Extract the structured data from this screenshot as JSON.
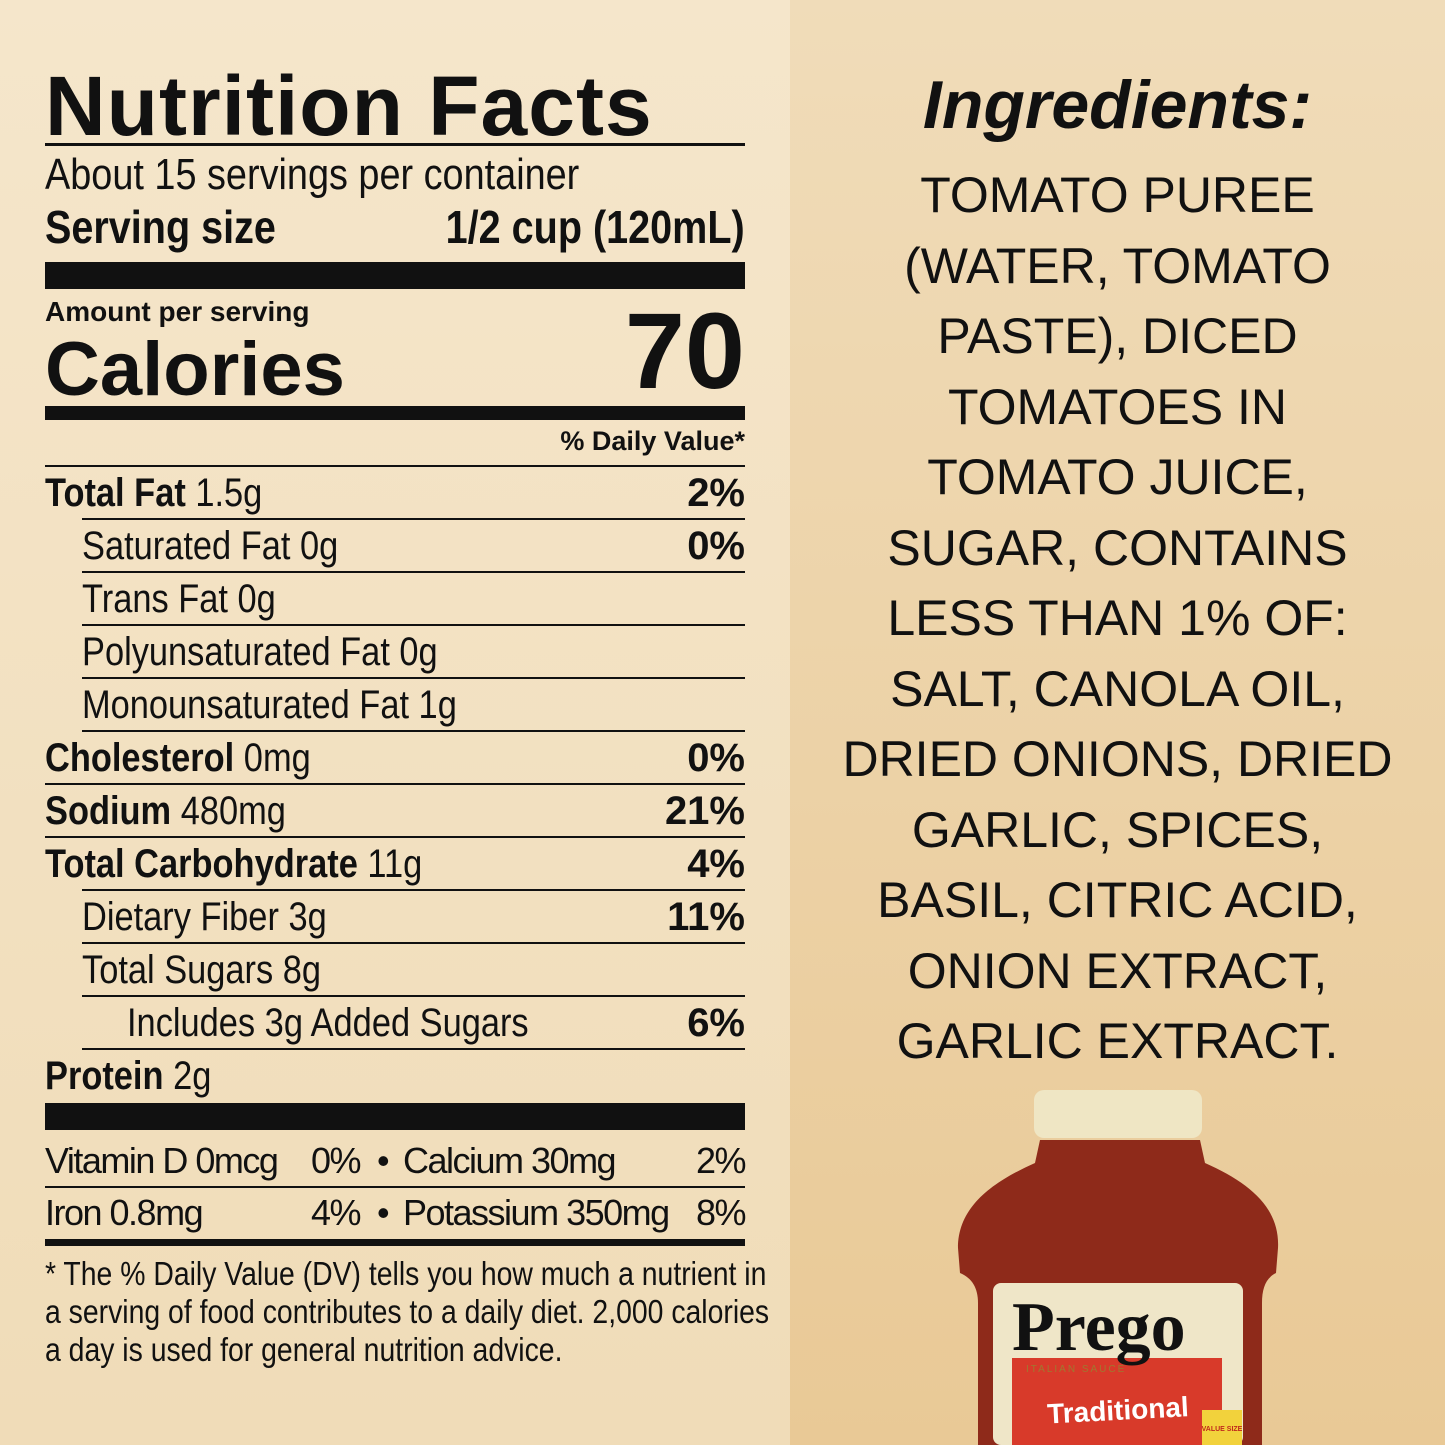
{
  "nutrition": {
    "title": "Nutrition Facts",
    "servings": "About 15 servings per container",
    "serving_size_label": "Serving size",
    "serving_size_value": "1/2 cup (120mL)",
    "amount_per_serving": "Amount per serving",
    "calories_label": "Calories",
    "calories_value": "70",
    "dv_header": "% Daily Value*",
    "rows": [
      {
        "name": "Total Fat",
        "amount": "1.5g",
        "dv": "2%",
        "bold": true,
        "indent": 0
      },
      {
        "name": "Saturated Fat 0g",
        "amount": "",
        "dv": "0%",
        "bold": false,
        "indent": 1
      },
      {
        "name": "Trans Fat 0g",
        "amount": "",
        "dv": "",
        "bold": false,
        "indent": 1
      },
      {
        "name": "Polyunsaturated Fat 0g",
        "amount": "",
        "dv": "",
        "bold": false,
        "indent": 1
      },
      {
        "name": "Monounsaturated Fat 1g",
        "amount": "",
        "dv": "",
        "bold": false,
        "indent": 1
      },
      {
        "name": "Cholesterol",
        "amount": "0mg",
        "dv": "0%",
        "bold": true,
        "indent": 0
      },
      {
        "name": "Sodium",
        "amount": "480mg",
        "dv": "21%",
        "bold": true,
        "indent": 0
      },
      {
        "name": "Total Carbohydrate",
        "amount": "11g",
        "dv": "4%",
        "bold": true,
        "indent": 0
      },
      {
        "name": "Dietary Fiber 3g",
        "amount": "",
        "dv": "11%",
        "bold": false,
        "indent": 1
      },
      {
        "name": "Total Sugars 8g",
        "amount": "",
        "dv": "",
        "bold": false,
        "indent": 1
      },
      {
        "name": "Includes 3g Added Sugars",
        "amount": "",
        "dv": "6%",
        "bold": false,
        "indent": 2
      },
      {
        "name": "Protein",
        "amount": "2g",
        "dv": "",
        "bold": true,
        "indent": 0
      }
    ],
    "vitamins": [
      {
        "a": "Vitamin D 0mcg",
        "a_dv": "0%",
        "b": "Calcium 30mg",
        "b_dv": "2%"
      },
      {
        "a": "Iron 0.8mg",
        "a_dv": "4%",
        "b": "Potassium 350mg",
        "b_dv": "8%"
      }
    ],
    "bullet": "•",
    "footnote": [
      "* The % Daily Value (DV) tells you how much a nutrient in",
      "a serving of food contributes to a daily diet. 2,000 calories",
      "a day is used for general nutrition advice."
    ]
  },
  "ingredients": {
    "title": "Ingredients:",
    "lines": [
      "TOMATO PUREE",
      "(WATER, TOMATO",
      "PASTE), DICED",
      "TOMATOES IN",
      "TOMATO JUICE,",
      "SUGAR, CONTAINS",
      "LESS THAN 1% OF:",
      "SALT, CANOLA OIL,",
      "DRIED ONIONS, DRIED",
      "GARLIC, SPICES,",
      "BASIL, CITRIC ACID,",
      "ONION EXTRACT,",
      "GARLIC EXTRACT."
    ]
  },
  "product": {
    "brand": "Prego",
    "subtitle": "ITALIAN SAUCE",
    "variety": "Traditional",
    "badge": "VALUE SIZE"
  },
  "colors": {
    "left_bg": "#f4e4c8",
    "right_bg": "#ecd2a6",
    "sauce": "#8e2a1a",
    "cap": "#efe6c4",
    "label_red": "#d83a2a"
  }
}
